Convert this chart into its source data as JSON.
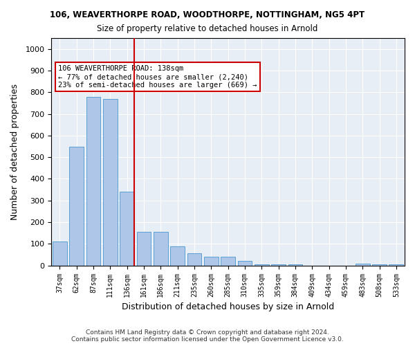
{
  "title1": "106, WEAVERTHORPE ROAD, WOODTHORPE, NOTTINGHAM, NG5 4PT",
  "title2": "Size of property relative to detached houses in Arnold",
  "xlabel": "Distribution of detached houses by size in Arnold",
  "ylabel": "Number of detached properties",
  "categories": [
    "37sqm",
    "62sqm",
    "87sqm",
    "111sqm",
    "136sqm",
    "161sqm",
    "186sqm",
    "211sqm",
    "235sqm",
    "260sqm",
    "285sqm",
    "310sqm",
    "335sqm",
    "359sqm",
    "384sqm",
    "409sqm",
    "434sqm",
    "459sqm",
    "483sqm",
    "508sqm",
    "533sqm"
  ],
  "values": [
    110,
    550,
    780,
    770,
    340,
    155,
    155,
    90,
    55,
    40,
    40,
    20,
    5,
    5,
    5,
    0,
    0,
    0,
    10,
    5,
    5
  ],
  "bar_color": "#aec6e8",
  "bar_edge_color": "#5a9fd4",
  "vline_x_index": 4,
  "vline_color": "#cc0000",
  "annotation_text": "106 WEAVERTHORPE ROAD: 138sqm\n← 77% of detached houses are smaller (2,240)\n23% of semi-detached houses are larger (669) →",
  "annotation_box_color": "#ffffff",
  "annotation_box_edge_color": "#cc0000",
  "background_color": "#e8eef5",
  "footer_text": "Contains HM Land Registry data © Crown copyright and database right 2024.\nContains public sector information licensed under the Open Government Licence v3.0.",
  "ylim": [
    0,
    1050
  ],
  "yticks": [
    0,
    100,
    200,
    300,
    400,
    500,
    600,
    700,
    800,
    900,
    1000
  ]
}
